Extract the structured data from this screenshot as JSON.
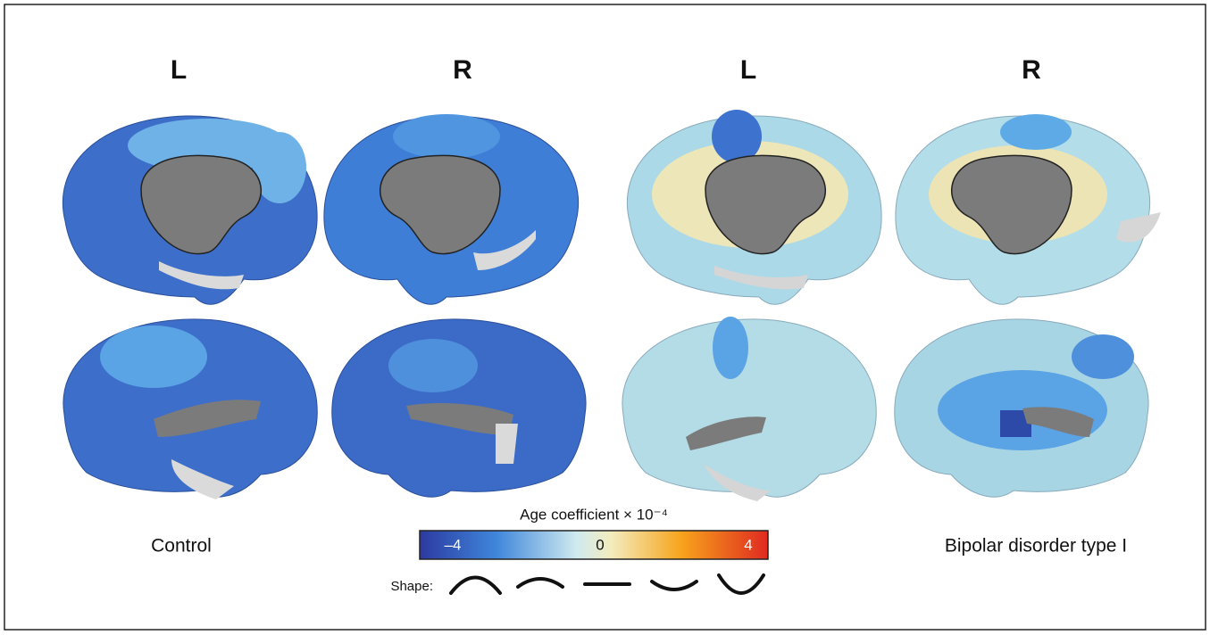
{
  "hemispheres": [
    "L",
    "R",
    "L",
    "R"
  ],
  "groups": {
    "left": "Control",
    "right": "Bipolar disorder type I"
  },
  "colorbar": {
    "title": "Age coefficient × 10⁻⁴",
    "ticks": [
      "–4",
      "0",
      "4"
    ]
  },
  "shape_label": "Shape:"
}
